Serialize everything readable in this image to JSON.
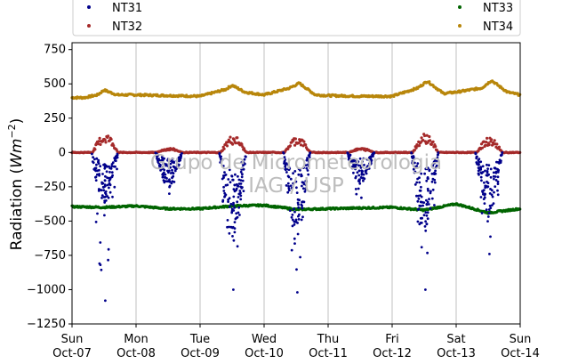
{
  "chart_data": {
    "type": "scatter",
    "ylabel": "Radiation (Wm⁻²)",
    "ylabel_parts": {
      "main": "Radiation (",
      "italic": "Wm",
      "sup": "−2",
      "close": ")"
    },
    "ylim": [
      -1250,
      800
    ],
    "y_ticks": [
      -1250,
      -1000,
      -750,
      -500,
      -250,
      0,
      250,
      500,
      750
    ],
    "y_tick_labels": [
      "−1250",
      "−1000",
      "−750",
      "−500",
      "−250",
      "0",
      "250",
      "500",
      "750"
    ],
    "xlim": [
      "2018-10-07",
      "2018-10-14"
    ],
    "x_ticks": [
      {
        "day": "Sun",
        "date": "Oct-07"
      },
      {
        "day": "Mon",
        "date": "Oct-08"
      },
      {
        "day": "Tue",
        "date": "Oct-09"
      },
      {
        "day": "Wed",
        "date": "Oct-10"
      },
      {
        "day": "Thu",
        "date": "Oct-11"
      },
      {
        "day": "Fri",
        "date": "Oct-12"
      },
      {
        "day": "Sat",
        "date": "Oct-13"
      },
      {
        "day": "Sun",
        "date": "Oct-14"
      }
    ],
    "grid": "vertical",
    "legend_position": "top",
    "watermark": [
      "Grupo de Micrometeorologia",
      "IAG / USP"
    ],
    "series": [
      {
        "name": "NT31",
        "color": "#00008b",
        "baseline": 0,
        "days": [
          {
            "offset": 0,
            "peak": -1080,
            "min_env": -350
          },
          {
            "offset": 1,
            "peak": -300,
            "min_env": -230
          },
          {
            "offset": 2,
            "peak": -1000,
            "min_env": -600
          },
          {
            "offset": 3,
            "peak": -1020,
            "min_env": -500
          },
          {
            "offset": 4,
            "peak": -330,
            "min_env": -210
          },
          {
            "offset": 5,
            "peak": -1000,
            "min_env": -550
          },
          {
            "offset": 6,
            "peak": -740,
            "min_env": -420
          }
        ]
      },
      {
        "name": "NT32",
        "color": "#a52a2a",
        "baseline": 0,
        "days": [
          {
            "offset": 0,
            "peak": 130
          },
          {
            "offset": 1,
            "peak": 30
          },
          {
            "offset": 2,
            "peak": 115
          },
          {
            "offset": 3,
            "peak": 110
          },
          {
            "offset": 4,
            "peak": 30
          },
          {
            "offset": 5,
            "peak": 130
          },
          {
            "offset": 6,
            "peak": 100
          }
        ]
      },
      {
        "name": "NT33",
        "color": "#006400",
        "x": [
          0,
          0.5,
          1,
          1.5,
          2,
          2.5,
          3,
          3.5,
          4,
          4.5,
          5,
          5.5,
          6,
          6.5,
          7
        ],
        "y": [
          -395,
          -400,
          -390,
          -410,
          -410,
          -390,
          -385,
          -415,
          -410,
          -405,
          -400,
          -420,
          -375,
          -440,
          -410
        ]
      },
      {
        "name": "NT34",
        "color": "#b8860b",
        "x": [
          0,
          0.2,
          0.4,
          0.5,
          0.7,
          1,
          1.5,
          2,
          2.4,
          2.5,
          2.7,
          3,
          3.4,
          3.55,
          3.8,
          4,
          4.5,
          5,
          5.4,
          5.55,
          5.8,
          6,
          6.4,
          6.55,
          6.8,
          7
        ],
        "y": [
          400,
          400,
          420,
          455,
          420,
          420,
          415,
          410,
          460,
          490,
          440,
          420,
          470,
          505,
          420,
          415,
          410,
          410,
          470,
          520,
          430,
          440,
          470,
          525,
          440,
          420
        ]
      }
    ]
  }
}
